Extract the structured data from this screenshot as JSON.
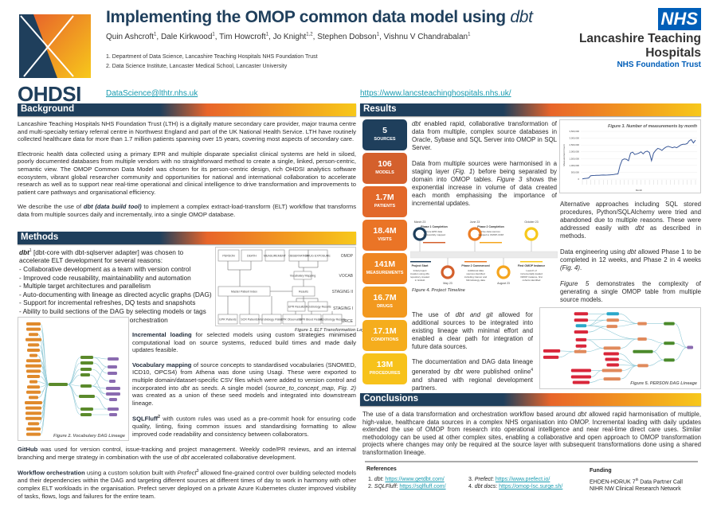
{
  "header": {
    "title": "Implementing the OMOP common data model using ",
    "title_italic": "dbt",
    "authors": [
      {
        "name": "Quin Ashcroft",
        "sup": "1"
      },
      {
        "name": "Dale Kirkwood",
        "sup": "1"
      },
      {
        "name": "Tim Howcroft",
        "sup": "1"
      },
      {
        "name": "Jo Knight",
        "sup": "1,2"
      },
      {
        "name": "Stephen Dobson",
        "sup": "1"
      },
      {
        "name": "Vishnu V Chandrabalan",
        "sup": "1"
      }
    ],
    "affiliations": [
      "1.   Department of Data Science, Lancashire Teaching Hospitals NHS Foundation Trust",
      "2.   Data Science Institute, Lancaster Medical School, Lancaster University"
    ],
    "email": "DataScience@lthtr.nhs.uk",
    "website": "https://www.lancsteachinghospitals.nhs.uk/",
    "ohdsi_logo": "OHDSI",
    "nhs_logo": {
      "badge": "NHS",
      "line1": "Lancashire Teaching",
      "line2": "Hospitals",
      "line3": "NHS Foundation Trust"
    }
  },
  "colors": {
    "navy": "#1f3f5c",
    "orange": "#e8652a",
    "yellow": "#f7c81b",
    "nhs_blue": "#005eb8",
    "link": "#1a9bb0"
  },
  "background": {
    "heading": "Background",
    "p1": "Lancashire Teaching Hospitals NHS Foundation Trust (LTH) is a digitally mature secondary care provider, major trauma centre and multi-specialty tertiary referral centre in Northwest England and part of the UK National Health Service. LTH have routinely collected healthcare data for more than 1.7 million patients spanning over 15 years, covering most aspects of secondary care.",
    "p2": "Electronic health data collected using a primary EPR and multiple disparate specialist clinical systems are held in siloed, poorly documented databases from multiple vendors with no straightforward method to create a single, linked, person-centric, semantic view. The OMOP Common Data Model was chosen for its person-centric design, rich OHDSI analytics software ecosystem, vibrant global researcher community and opportunities for national and international collaboration to accelerate research as well as to support near real-time operational and clinical intelligence to drive transformation and improvements to patient care pathways and organisational efficiency.",
    "p3_a": "We describe the use of ",
    "p3_b": "dbt (data build tool)",
    "p3_c": " to implement a complex extract-load-transform (ELT) workflow that transforms data from multiple sources daily and incrementally, into a single OMOP database."
  },
  "methods": {
    "heading": "Methods",
    "intro_a": "dbt",
    "intro_sup": "1",
    "intro_b": " [dbt-core with dbt-sqlserver adapter] was chosen to accelerate ELT development for several reasons:",
    "reasons": [
      "Collaborative development as a team with version control",
      "Improved code reusability, maintainability and automation",
      "Multiple target architectures and parallelism",
      "Auto-documenting with lineage as directed acyclic graphs (DAG)",
      "Support for incremental refreshes, DQ tests and snapshots",
      "Ability to build sections of the DAG by selecting models or tags",
      "Integration with Prefect for workflow orchestration"
    ],
    "incremental_b": "Incremental loading",
    "incremental": " for selected models using custom strategies minimised computational load on source systems, reduced build times and made daily updates feasible.",
    "vocab_b": "Vocabulary mapping",
    "vocab_1": " of source concepts to standardised vocabularies (SNOMED, ICD10, OPCS4) from Athena was done using Usagi. These were exported to multiple domain/dataset-specific CSV files which were added to version control and incorporated into ",
    "vocab_i1": "dbt",
    "vocab_2": " as ",
    "vocab_i2": "seeds",
    "vocab_3": ". A single model (",
    "vocab_i3": "source_to_concept_map, Fig. 2)",
    "vocab_4": " was created as a union of these seed models and integrated into downstream lineage.",
    "sqlfluff_b": "SQLFluff",
    "sqlfluff_sup": "2",
    "sqlfluff": " with custom rules was used as a pre-commit hook for ensuring code quality, linting, fixing common issues and standardising formatting to allow improved code readability and consistency between collaborators.",
    "github_b": "GitHub",
    "github_1": " was used for version control, issue-tracking and project management. Weekly code/PR reviews, and an internal branching and merge strategy in combination with the use of ",
    "github_i": "dbt",
    "github_2": " accelerated collaborative development.",
    "workflow_b": "Workflow orchestration",
    "workflow_1": " using a custom solution built with ",
    "workflow_i": "Prefect",
    "workflow_sup": "3",
    "workflow_2": " allowed fine-grained control over building selected models and their dependencies within the DAG and targeting different sources at different times of day to work in harmony with other complex ELT workloads in the organisation. Prefect server deployed on a private Azure Kubernetes cluster improved visibility of tasks, flows, logs and failures for the entire team.",
    "fig1": {
      "caption": "Figure 1. ELT Transformation Layers",
      "layers": [
        "OMOP",
        "VOCAB",
        "STAGING II",
        "STAGING I",
        "SOURCE"
      ],
      "omop": [
        "PERSON",
        "DEATH",
        "MEASUREMENT",
        "OBSERVATION",
        "DRUG EXPOSURE"
      ],
      "vocab": "Vocabulary Mapping",
      "mpi": "Master Patient Index",
      "results": "Results",
      "staging1": [
        "EPR Results",
        "Microbiology Results"
      ],
      "source": [
        "EPR Patients",
        "SCR Patients",
        "Microbiology Patients",
        "EPR Observations",
        "EPR Blood Results",
        "Microbiology Results"
      ]
    },
    "fig2": {
      "caption": "Figure 2. Vocabulary DAG Lineage"
    }
  },
  "results": {
    "heading": "Results",
    "stats": [
      {
        "value": "5",
        "label": "SOURCES",
        "color": "#1f3f5c"
      },
      {
        "value": "106",
        "label": "MODELS",
        "color": "#d4602c"
      },
      {
        "value": "1.7M",
        "label": "PATIENTS",
        "color": "#e2682a"
      },
      {
        "value": "18.4M",
        "label": "VISITS",
        "color": "#ea7426"
      },
      {
        "value": "141M",
        "label": "MEASUREMENTS",
        "color": "#ef8622"
      },
      {
        "value": "16.7M",
        "label": "DRUGS",
        "color": "#f2991f"
      },
      {
        "value": "17.1M",
        "label": "CONDITIONS",
        "color": "#f5ad1d"
      },
      {
        "value": "13M",
        "label": "PROCEDURES",
        "color": "#f7c21b"
      }
    ],
    "t1_i": "dbt",
    "t1": " enabled rapid, collaborative transformation of data from multiple, complex source databases in Oracle, Sybase and SQL Server into OMOP in SQL Server.",
    "t2_a": "Data from multiple sources were harmonised in a staging layer  (",
    "t2_i1": "Fig. 1",
    "t2_b": ") before being separated by domain into OMOP tables. ",
    "t2_i2": "Figure 3",
    "t2_c": " shows the exponential increase in volume of data created each month emphasising the importance of incremental updates.",
    "t3": "Alternative approaches including SQL stored procedures, Python/SQLAlchemy were tried and abandoned due to multiple reasons. These were addressed easily with ",
    "t3_i": "dbt",
    "t3_b": " as described in methods.",
    "t4_a": "Data engineering using ",
    "t4_i": "dbt",
    "t4_b": " allowed Phase 1 to be completed in 12 weeks, and Phase 2 in 4 weeks ",
    "t4_i2": "(Fig. 4)",
    "t4_c": ".",
    "t5_i": "Figure 5",
    "t5": " demonstrates the complexity of generating a single OMOP table from multiple source models.",
    "t6_a": "The use of ",
    "t6_i": "dbt and git",
    "t6_b": " allowed for additional sources to be integrated into existing lineage with minimal effort and enabled a clear path for integration of future data sources.",
    "t7_a": "The documentation and DAG data lineage generated by ",
    "t7_i": "dbt",
    "t7_b": " were published online",
    "t7_sup": "4",
    "t7_c": " and shared with regional development partners.",
    "fig4": {
      "caption": "Figure 4. Project Timeline",
      "events": [
        {
          "date": "March 23",
          "title": "Project Start",
          "desc": "Initial project creation using dbt, repository created in GitHub",
          "color": "#1f3f5c",
          "pos": "top"
        },
        {
          "date": "May 23",
          "title": "Phase 1 Completion",
          "desc": "Core EPR data successfully mapped",
          "color": "#d4602c",
          "pos": "bottom"
        },
        {
          "date": "June 23",
          "title": "Phase 2 Commenced",
          "desc": "Additional data sources identified including Cancer and Microbiology data",
          "color": "#ec7c24",
          "pos": "top"
        },
        {
          "date": "August 23",
          "title": "Phase 2 Completion",
          "desc": "Five data sources mapped to OMOP-CDM",
          "color": "#f5a51d",
          "pos": "bottom"
        },
        {
          "date": "October  23",
          "title": "First OMOP Instance",
          "desc": "Launch of incrementally loaded OMOP instance, first cohorts identified",
          "color": "#f7c81b",
          "pos": "top"
        }
      ]
    },
    "fig5": {
      "caption": "Figure 5. PERSON DAG Lineage"
    }
  },
  "chart_data": {
    "type": "line",
    "title": "Figure 3. Number of measurements by month",
    "xlabel": "Month",
    "ylabel": "Measurement Count",
    "ylim": [
      0,
      3500000
    ],
    "yticks": [
      "0",
      "500,000",
      "1,000,000",
      "1,500,000",
      "2,000,000",
      "2,500,000",
      "3,000,000",
      "3,500,000"
    ],
    "grid": true,
    "values": [
      20000,
      40000,
      60000,
      80000,
      250000,
      260000,
      270000,
      280000,
      280000,
      290000,
      300000,
      290000,
      300000,
      310000,
      320000,
      340000,
      360000,
      380000,
      1000000,
      1400000,
      1480000,
      1450000,
      1350000,
      1900000,
      1980000,
      1800000,
      1850000,
      1900000,
      2000000,
      1850000,
      2000000,
      2050000,
      1950000,
      1350000,
      1900000,
      2100000,
      2250000,
      2200000,
      2100000,
      2250000,
      2350000,
      2400000,
      2350000,
      2300000,
      2350000,
      2300000,
      2400000,
      2500000,
      2550000,
      2550000,
      2600000,
      2800000,
      2900000,
      2650000,
      2850000
    ]
  },
  "conclusions": {
    "heading": "Conclusions",
    "a": "The use of a data transformation and orchestration workflow based around ",
    "i": "dbt",
    "b": " allowed rapid harmonisation of multiple, high-value, healthcare data sources in a complex NHS organisation into OMOP. Incremental loading with daily updates extended the use of OMOP from research into operational intelligence and near real-time direct care uses. Similar methodology can be used at other complex sites, enabling a collaborative and open approach to OMOP transformation projects where changes may only be required at the source layer with subsequent transformations done using a shared transformation lineage."
  },
  "references": {
    "heading": "References",
    "items": [
      {
        "num": "1.",
        "label": "dbt",
        "url": "https://www.getdbt.com/"
      },
      {
        "num": "2.",
        "label": "SQLFluff",
        "url": "https://sqlfluff.com/"
      },
      {
        "num": "3.",
        "label": "Prefect",
        "url": "https://www.prefect.io/"
      },
      {
        "num": "4.",
        "label": "dbt docs",
        "url": "https://omop-lsc.surge.sh/"
      }
    ]
  },
  "funding": {
    "heading": "Funding",
    "line1_a": "EHDEN-HDRUK 7",
    "line1_sup": "th",
    "line1_b": " Data Partner Call",
    "line2": "NIHR NW Clinical Research Network"
  }
}
